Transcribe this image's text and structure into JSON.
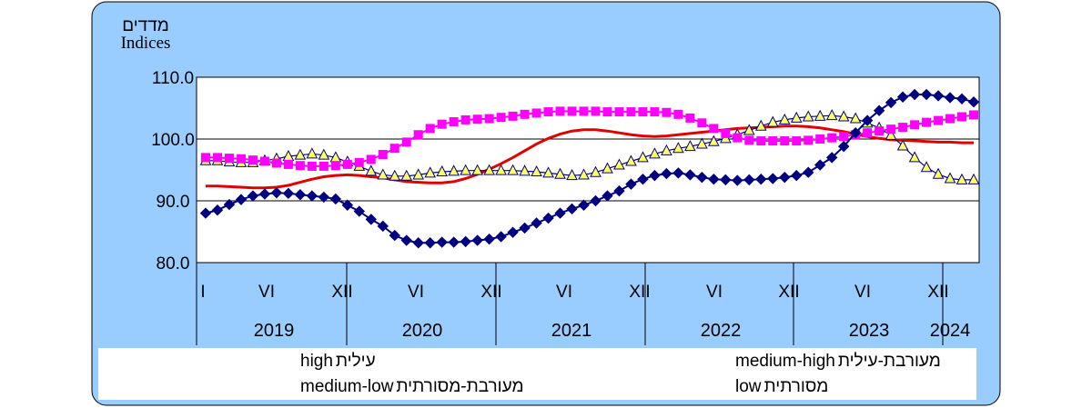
{
  "chart_data": {
    "type": "line",
    "ylabel": "מדדים",
    "ylabel_en": "Indices",
    "ylim": [
      80,
      110
    ],
    "yticks": [
      "80.0",
      "90.0",
      "100.0",
      "110.0"
    ],
    "month_ticks": [
      "I",
      "VI",
      "XII",
      "VI",
      "XII",
      "VI",
      "XII",
      "VI",
      "XII",
      "VI",
      "XII"
    ],
    "years": [
      "2019",
      "2020",
      "2021",
      "2022",
      "2023",
      "2024"
    ],
    "x_start": "2019-01",
    "colors": {
      "frame_bg": "#99ccff",
      "plot_bg": "#ffffff",
      "grid": "#000000",
      "high": "#000080",
      "medium_high": "#ff00ff",
      "medium_low": "#c0c0a0",
      "low": "#e00000"
    },
    "series": [
      {
        "key": "high",
        "name": "high עילית",
        "marker": "diamond",
        "values": [
          88.0,
          88.5,
          89.4,
          90.2,
          90.8,
          91.1,
          91.3,
          91.2,
          91.0,
          90.8,
          90.6,
          90.3,
          89.3,
          88.3,
          87.0,
          85.9,
          84.4,
          83.6,
          83.2,
          83.2,
          83.3,
          83.3,
          83.4,
          83.6,
          83.8,
          84.2,
          84.9,
          85.6,
          86.4,
          87.2,
          88.0,
          88.7,
          89.3,
          90.0,
          90.8,
          91.6,
          92.7,
          93.5,
          94.1,
          94.4,
          94.5,
          94.2,
          93.8,
          93.5,
          93.4,
          93.3,
          93.4,
          93.5,
          93.6,
          93.8,
          94.1,
          94.6,
          95.8,
          97.0,
          98.8,
          101.0,
          103.0,
          104.6,
          105.9,
          106.8,
          107.2,
          107.2,
          107.0,
          106.7,
          106.5,
          106.0
        ]
      },
      {
        "key": "medium_high",
        "name": "medium-high מעורבת-עילית",
        "marker": "square",
        "values": [
          97.0,
          97.0,
          96.9,
          96.8,
          96.6,
          96.4,
          96.1,
          95.9,
          95.7,
          95.6,
          95.6,
          95.7,
          95.9,
          96.2,
          96.7,
          97.5,
          98.5,
          99.5,
          100.7,
          101.7,
          102.4,
          102.8,
          103.1,
          103.2,
          103.3,
          103.5,
          103.7,
          104.0,
          104.2,
          104.4,
          104.5,
          104.5,
          104.5,
          104.5,
          104.4,
          104.4,
          104.4,
          104.4,
          104.4,
          104.3,
          104.0,
          103.4,
          102.6,
          101.7,
          100.9,
          100.2,
          99.8,
          99.7,
          99.7,
          99.7,
          99.7,
          99.8,
          100.0,
          100.2,
          100.4,
          100.7,
          101.0,
          101.3,
          101.6,
          101.9,
          102.3,
          102.7,
          103.0,
          103.3,
          103.6,
          103.9
        ]
      },
      {
        "key": "medium_low",
        "name": "medium-low מעורבת-מסורתית",
        "marker": "triangle",
        "values": [
          96.5,
          96.5,
          96.3,
          96.2,
          96.2,
          96.5,
          96.8,
          97.2,
          97.4,
          97.6,
          97.4,
          97.0,
          96.3,
          95.6,
          94.8,
          94.2,
          94.0,
          94.0,
          94.2,
          94.5,
          94.7,
          94.8,
          94.9,
          94.9,
          94.9,
          94.9,
          94.9,
          94.8,
          94.7,
          94.5,
          94.3,
          94.1,
          94.2,
          94.6,
          95.2,
          95.8,
          96.4,
          97.0,
          97.6,
          98.1,
          98.5,
          98.8,
          99.2,
          99.6,
          100.1,
          100.7,
          101.4,
          102.1,
          102.7,
          103.1,
          103.4,
          103.6,
          103.7,
          103.8,
          103.6,
          103.3,
          102.6,
          101.8,
          100.6,
          98.9,
          97.0,
          95.4,
          94.3,
          93.6,
          93.4,
          93.4
        ]
      },
      {
        "key": "low",
        "name": "low מסורתית",
        "marker": "none",
        "values": [
          92.4,
          92.4,
          92.3,
          92.2,
          92.1,
          92.1,
          92.2,
          92.5,
          93.0,
          93.5,
          93.9,
          94.1,
          94.2,
          94.1,
          93.9,
          93.7,
          93.4,
          93.1,
          93.0,
          92.9,
          92.9,
          93.1,
          93.6,
          94.3,
          95.1,
          96.0,
          97.0,
          98.1,
          99.2,
          100.1,
          100.8,
          101.3,
          101.5,
          101.5,
          101.3,
          101.0,
          100.7,
          100.5,
          100.4,
          100.5,
          100.7,
          100.9,
          101.1,
          101.3,
          101.5,
          101.7,
          101.8,
          101.9,
          102.0,
          102.1,
          102.1,
          102.0,
          101.8,
          101.5,
          101.2,
          100.8,
          100.4,
          100.1,
          99.9,
          99.8,
          99.7,
          99.6,
          99.5,
          99.5,
          99.4,
          99.4
        ]
      }
    ]
  },
  "legend": {
    "high_en": "high",
    "high_he": "עילית",
    "medium_high_en": "medium-high",
    "medium_high_he": "מעורבת-עילית",
    "medium_low_en": "medium-low",
    "medium_low_he": "מעורבת-מסורתית",
    "low_en": "low",
    "low_he": "מסורתית"
  }
}
